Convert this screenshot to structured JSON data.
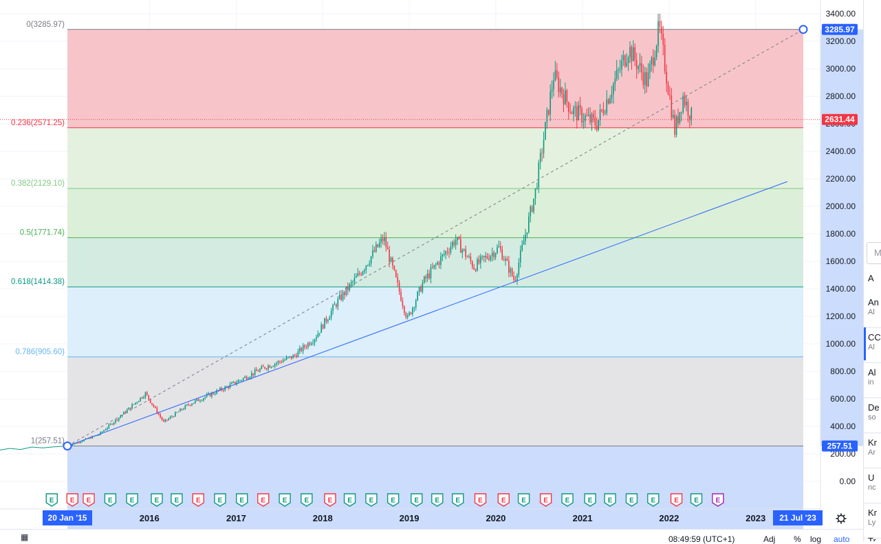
{
  "chart_data": {
    "type": "candlestick",
    "title": "",
    "x_axis": {
      "start_label": "20 Jan '15",
      "end_label": "21 Jul '23",
      "year_ticks": [
        "2016",
        "2017",
        "2018",
        "2019",
        "2020",
        "2021",
        "2022",
        "2023"
      ]
    },
    "y_axis": {
      "ticks": [
        "3400.00",
        "3200.00",
        "3000.00",
        "2800.00",
        "2600.00",
        "2400.00",
        "2200.00",
        "2000.00",
        "1800.00",
        "1600.00",
        "1400.00",
        "1200.00",
        "1000.00",
        "800.00",
        "600.00",
        "400.00",
        "200.00",
        "0.00"
      ],
      "range": [
        -80,
        3520
      ]
    },
    "price_badges": {
      "fib_high": "3285.97",
      "last_price": "2631.44",
      "fib_low": "257.51"
    },
    "fib_levels": [
      {
        "label": "0(3285.97)",
        "value": 3285.97,
        "line_color": "#787b86",
        "text_color": "#787b86",
        "fill": "#f7c5c9"
      },
      {
        "label": "0.236(2571.25)",
        "value": 2571.25,
        "line_color": "#f23645",
        "text_color": "#f23645",
        "fill": "#e3f1de"
      },
      {
        "label": "0.382(2129.10)",
        "value": 2129.1,
        "line_color": "#81c784",
        "text_color": "#81c784",
        "fill": "#dcefd8"
      },
      {
        "label": "0.5(1771.74)",
        "value": 1771.74,
        "line_color": "#4caf50",
        "text_color": "#4caf50",
        "fill": "#d4ebe2"
      },
      {
        "label": "0.618(1414.38)",
        "value": 1414.38,
        "line_color": "#089981",
        "text_color": "#089981",
        "fill": "#dceffa"
      },
      {
        "label": "0.786(905.60)",
        "value": 905.6,
        "line_color": "#64b5f6",
        "text_color": "#64b5f6",
        "fill": "#e4e4e6"
      },
      {
        "label": "1(257.51)",
        "value": 257.51,
        "line_color": "#787b86",
        "text_color": "#787b86",
        "fill": "#ccdcfc"
      }
    ],
    "series_anchor_points": [
      {
        "x": "2015-01-20",
        "y": 257.51
      },
      {
        "x": "2015-06-01",
        "y": 340
      },
      {
        "x": "2015-10-01",
        "y": 520
      },
      {
        "x": "2015-12-15",
        "y": 640
      },
      {
        "x": "2016-03-01",
        "y": 430
      },
      {
        "x": "2016-06-15",
        "y": 560
      },
      {
        "x": "2016-11-15",
        "y": 680
      },
      {
        "x": "2017-05-01",
        "y": 830
      },
      {
        "x": "2017-09-01",
        "y": 910
      },
      {
        "x": "2017-12-01",
        "y": 1050
      },
      {
        "x": "2018-03-01",
        "y": 1300
      },
      {
        "x": "2018-06-01",
        "y": 1500
      },
      {
        "x": "2018-09-15",
        "y": 1770
      },
      {
        "x": "2018-12-24",
        "y": 1180
      },
      {
        "x": "2019-03-01",
        "y": 1450
      },
      {
        "x": "2019-07-15",
        "y": 1760
      },
      {
        "x": "2019-10-01",
        "y": 1560
      },
      {
        "x": "2020-01-15",
        "y": 1700
      },
      {
        "x": "2020-03-20",
        "y": 1460
      },
      {
        "x": "2020-06-15",
        "y": 2100
      },
      {
        "x": "2020-09-01",
        "y": 2950
      },
      {
        "x": "2020-11-15",
        "y": 2700
      },
      {
        "x": "2021-03-01",
        "y": 2600
      },
      {
        "x": "2021-07-15",
        "y": 3150
      },
      {
        "x": "2021-10-01",
        "y": 2900
      },
      {
        "x": "2021-11-20",
        "y": 3300
      },
      {
        "x": "2022-01-25",
        "y": 2550
      },
      {
        "x": "2022-03-01",
        "y": 2800
      },
      {
        "x": "2022-04-10",
        "y": 2631.44
      }
    ],
    "trendlines": [
      {
        "name": "dashed",
        "from": {
          "x": "2015-01-20",
          "y": 257.51
        },
        "to": {
          "x": "2023-07-21",
          "y": 3285.97
        }
      },
      {
        "name": "solid",
        "from": {
          "x": "2015-01-20",
          "y": 257.51
        },
        "to": {
          "x": "2023-05-15",
          "y": 2180
        }
      }
    ],
    "earnings_markers": [
      {
        "x": "2014-11-15",
        "color": "#089981"
      },
      {
        "x": "2015-02-10",
        "color": "#f23645"
      },
      {
        "x": "2015-04-20",
        "color": "#f23645"
      },
      {
        "x": "2015-07-20",
        "color": "#089981"
      },
      {
        "x": "2015-10-20",
        "color": "#089981"
      },
      {
        "x": "2016-02-01",
        "color": "#089981"
      },
      {
        "x": "2016-04-25",
        "color": "#089981"
      },
      {
        "x": "2016-07-25",
        "color": "#f23645"
      },
      {
        "x": "2016-10-25",
        "color": "#089981"
      },
      {
        "x": "2017-01-25",
        "color": "#089981"
      },
      {
        "x": "2017-04-25",
        "color": "#f23645"
      },
      {
        "x": "2017-07-25",
        "color": "#089981"
      },
      {
        "x": "2017-10-25",
        "color": "#089981"
      },
      {
        "x": "2018-02-01",
        "color": "#f23645"
      },
      {
        "x": "2018-04-25",
        "color": "#089981"
      },
      {
        "x": "2018-07-25",
        "color": "#089981"
      },
      {
        "x": "2018-10-25",
        "color": "#089981"
      },
      {
        "x": "2019-02-01",
        "color": "#089981"
      },
      {
        "x": "2019-04-29",
        "color": "#089981"
      },
      {
        "x": "2019-07-25",
        "color": "#089981"
      },
      {
        "x": "2019-10-28",
        "color": "#f23645"
      },
      {
        "x": "2020-02-03",
        "color": "#f23645"
      },
      {
        "x": "2020-04-28",
        "color": "#089981"
      },
      {
        "x": "2020-07-30",
        "color": "#f23645"
      },
      {
        "x": "2020-10-29",
        "color": "#089981"
      },
      {
        "x": "2021-02-02",
        "color": "#089981"
      },
      {
        "x": "2021-04-27",
        "color": "#089981"
      },
      {
        "x": "2021-07-27",
        "color": "#089981"
      },
      {
        "x": "2021-10-26",
        "color": "#089981"
      },
      {
        "x": "2022-02-01",
        "color": "#f23645"
      },
      {
        "x": "2022-04-26",
        "color": "#089981"
      },
      {
        "x": "2022-07-26",
        "color": "#9c27b0"
      }
    ],
    "colors": {
      "up": "#089981",
      "down": "#f23645",
      "trendline": "#2962ff",
      "axis_bg": "#ffffff",
      "range_bg": "#ccdcfc",
      "date_badge": "#2962ff"
    }
  },
  "bottom_bar": {
    "time": "08:49:59 (UTC+1)",
    "adj": "Adj",
    "percent": "%",
    "log": "log",
    "auto": "auto"
  },
  "right_panel": {
    "search_placeholder": "M",
    "items": [
      {
        "title": "A",
        "sub": ""
      },
      {
        "title": "An",
        "sub": "Al"
      },
      {
        "title": "CC",
        "sub": "Al"
      },
      {
        "title": "Al",
        "sub": "in"
      },
      {
        "title": "De",
        "sub": "so"
      },
      {
        "title": "Kr",
        "sub": "Ar"
      },
      {
        "title": "U",
        "sub": "nc"
      },
      {
        "title": "Kr",
        "sub": "Ly"
      },
      {
        "title": "Tr",
        "sub": ""
      }
    ]
  }
}
